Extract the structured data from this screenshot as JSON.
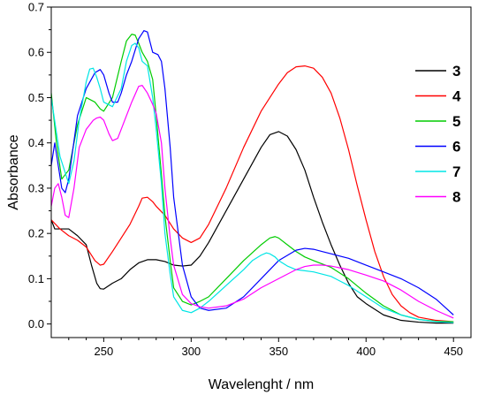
{
  "chart_data": {
    "type": "line",
    "title": "",
    "xlabel": "Wavelenght / nm",
    "ylabel": "Absorbance",
    "xlim": [
      220,
      460
    ],
    "ylim": [
      -0.03,
      0.7
    ],
    "xticks": [
      250,
      300,
      350,
      400,
      450
    ],
    "yticks": [
      0.0,
      0.1,
      0.2,
      0.3,
      0.4,
      0.5,
      0.6,
      0.7
    ],
    "ytick_labels": [
      "0.0",
      "0.1",
      "0.2",
      "0.3",
      "0.4",
      "0.5",
      "0.6",
      "0.7"
    ],
    "grid": false,
    "legend_position": "right",
    "series": [
      {
        "name": "3",
        "color": "#000000",
        "x": [
          220,
          222,
          225,
          230,
          235,
          240,
          243,
          246,
          248,
          250,
          255,
          260,
          265,
          270,
          275,
          280,
          285,
          290,
          295,
          300,
          305,
          310,
          320,
          330,
          340,
          345,
          350,
          355,
          360,
          365,
          370,
          375,
          380,
          385,
          390,
          395,
          400,
          410,
          420,
          430,
          440,
          450
        ],
        "y": [
          0.23,
          0.21,
          0.21,
          0.21,
          0.195,
          0.175,
          0.13,
          0.09,
          0.078,
          0.077,
          0.09,
          0.1,
          0.12,
          0.135,
          0.142,
          0.142,
          0.138,
          0.13,
          0.128,
          0.13,
          0.15,
          0.18,
          0.25,
          0.32,
          0.39,
          0.418,
          0.425,
          0.415,
          0.385,
          0.34,
          0.28,
          0.225,
          0.175,
          0.13,
          0.09,
          0.06,
          0.045,
          0.02,
          0.008,
          0.004,
          0.002,
          0.002
        ]
      },
      {
        "name": "4",
        "color": "#ff0000",
        "x": [
          220,
          225,
          230,
          235,
          240,
          245,
          248,
          250,
          255,
          260,
          265,
          270,
          272,
          275,
          278,
          280,
          285,
          290,
          295,
          300,
          305,
          310,
          320,
          330,
          340,
          350,
          355,
          360,
          365,
          370,
          375,
          380,
          385,
          390,
          395,
          400,
          405,
          410,
          415,
          420,
          425,
          430,
          440,
          450
        ],
        "y": [
          0.23,
          0.21,
          0.195,
          0.185,
          0.17,
          0.14,
          0.13,
          0.132,
          0.16,
          0.19,
          0.22,
          0.26,
          0.278,
          0.28,
          0.27,
          0.26,
          0.24,
          0.21,
          0.19,
          0.18,
          0.19,
          0.22,
          0.3,
          0.39,
          0.47,
          0.53,
          0.555,
          0.568,
          0.57,
          0.565,
          0.545,
          0.51,
          0.455,
          0.385,
          0.305,
          0.23,
          0.16,
          0.105,
          0.065,
          0.04,
          0.025,
          0.015,
          0.008,
          0.005
        ]
      },
      {
        "name": "5",
        "color": "#00cc00",
        "x": [
          220,
          223,
          226,
          230,
          235,
          240,
          245,
          248,
          250,
          255,
          260,
          263,
          266,
          268,
          270,
          272,
          275,
          278,
          280,
          283,
          285,
          288,
          290,
          295,
          300,
          305,
          310,
          320,
          330,
          340,
          345,
          348,
          350,
          355,
          360,
          365,
          370,
          380,
          390,
          400,
          410,
          420,
          430,
          440,
          450
        ],
        "y": [
          0.51,
          0.4,
          0.32,
          0.34,
          0.44,
          0.5,
          0.49,
          0.475,
          0.47,
          0.5,
          0.58,
          0.625,
          0.64,
          0.638,
          0.62,
          0.6,
          0.58,
          0.54,
          0.46,
          0.33,
          0.24,
          0.14,
          0.08,
          0.05,
          0.042,
          0.05,
          0.06,
          0.1,
          0.14,
          0.175,
          0.19,
          0.193,
          0.19,
          0.175,
          0.16,
          0.148,
          0.14,
          0.125,
          0.1,
          0.068,
          0.04,
          0.02,
          0.01,
          0.006,
          0.005
        ]
      },
      {
        "name": "6",
        "color": "#0000ff",
        "x": [
          220,
          222,
          224,
          226,
          228,
          230,
          235,
          240,
          245,
          248,
          250,
          253,
          255,
          258,
          260,
          263,
          266,
          270,
          273,
          275,
          278,
          281,
          283,
          285,
          288,
          290,
          295,
          300,
          305,
          310,
          320,
          330,
          340,
          350,
          360,
          365,
          370,
          375,
          380,
          390,
          400,
          410,
          420,
          430,
          440,
          450
        ],
        "y": [
          0.35,
          0.4,
          0.35,
          0.3,
          0.29,
          0.32,
          0.46,
          0.52,
          0.555,
          0.562,
          0.55,
          0.51,
          0.49,
          0.49,
          0.51,
          0.55,
          0.58,
          0.63,
          0.648,
          0.645,
          0.6,
          0.595,
          0.58,
          0.52,
          0.39,
          0.28,
          0.13,
          0.06,
          0.035,
          0.03,
          0.035,
          0.06,
          0.1,
          0.14,
          0.163,
          0.167,
          0.165,
          0.16,
          0.155,
          0.145,
          0.13,
          0.115,
          0.1,
          0.08,
          0.055,
          0.02
        ]
      },
      {
        "name": "7",
        "color": "#00e5e5",
        "x": [
          220,
          225,
          230,
          233,
          236,
          240,
          242,
          244,
          246,
          248,
          250,
          255,
          260,
          263,
          266,
          268,
          270,
          272,
          275,
          278,
          280,
          283,
          285,
          288,
          290,
          295,
          300,
          305,
          310,
          320,
          330,
          335,
          340,
          343,
          345,
          348,
          350,
          355,
          360,
          370,
          380,
          390,
          400,
          410,
          420,
          430,
          440,
          450
        ],
        "y": [
          0.5,
          0.37,
          0.31,
          0.36,
          0.45,
          0.535,
          0.563,
          0.565,
          0.545,
          0.52,
          0.49,
          0.48,
          0.52,
          0.58,
          0.615,
          0.62,
          0.61,
          0.58,
          0.57,
          0.5,
          0.43,
          0.31,
          0.2,
          0.11,
          0.06,
          0.03,
          0.025,
          0.035,
          0.05,
          0.085,
          0.12,
          0.14,
          0.152,
          0.157,
          0.155,
          0.148,
          0.14,
          0.128,
          0.12,
          0.115,
          0.105,
          0.085,
          0.06,
          0.035,
          0.02,
          0.01,
          0.005,
          0.003
        ]
      },
      {
        "name": "8",
        "color": "#ff00ff",
        "x": [
          220,
          222,
          224,
          226,
          228,
          230,
          233,
          236,
          240,
          244,
          246,
          248,
          250,
          253,
          255,
          258,
          260,
          263,
          266,
          270,
          272,
          275,
          278,
          280,
          283,
          285,
          288,
          290,
          295,
          300,
          305,
          310,
          320,
          330,
          340,
          350,
          360,
          365,
          370,
          375,
          380,
          385,
          390,
          400,
          410,
          420,
          430,
          440,
          450
        ],
        "y": [
          0.26,
          0.3,
          0.31,
          0.28,
          0.24,
          0.235,
          0.3,
          0.39,
          0.43,
          0.45,
          0.455,
          0.457,
          0.45,
          0.42,
          0.405,
          0.41,
          0.43,
          0.46,
          0.49,
          0.525,
          0.527,
          0.51,
          0.485,
          0.465,
          0.4,
          0.3,
          0.19,
          0.13,
          0.065,
          0.045,
          0.038,
          0.035,
          0.04,
          0.055,
          0.08,
          0.1,
          0.12,
          0.127,
          0.13,
          0.13,
          0.128,
          0.124,
          0.12,
          0.108,
          0.095,
          0.075,
          0.05,
          0.03,
          0.013
        ]
      }
    ]
  }
}
